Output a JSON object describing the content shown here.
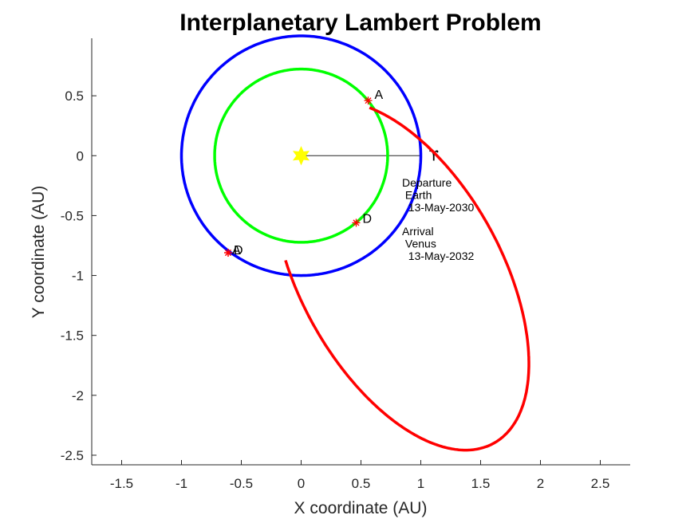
{
  "chart_data": {
    "type": "line",
    "title": "Interplanetary Lambert Problem",
    "xlabel": "X coordinate (AU)",
    "ylabel": "Y coordinate (AU)",
    "xlim": [
      -1.75,
      2.75
    ],
    "ylim": [
      -2.58,
      0.98
    ],
    "xticks": [
      -1.5,
      -1,
      -0.5,
      0,
      0.5,
      1,
      1.5,
      2,
      2.5
    ],
    "xtick_labels": [
      "-1.5",
      "-1",
      "-0.5",
      "0",
      "0.5",
      "1",
      "1.5",
      "2",
      "2.5"
    ],
    "yticks": [
      0.5,
      0,
      -0.5,
      -1,
      -1.5,
      -2,
      -2.5
    ],
    "ytick_labels": [
      "0.5",
      "0",
      "-0.5",
      "-1",
      "-1.5",
      "-2",
      "-2.5"
    ],
    "grid": false,
    "legend": "none",
    "series": [
      {
        "color": "#0000ff",
        "shape": "circle",
        "center": [
          0,
          0
        ],
        "radius": 1.0
      },
      {
        "color": "#00ff00",
        "shape": "circle",
        "center": [
          0,
          0
        ],
        "radius": 0.723
      },
      {
        "color": "#ff0000",
        "shape": "ellipse_arc",
        "center": [
          0.835,
          -1.0
        ],
        "semi_axes": [
          0.84,
          1.6
        ],
        "rotation_deg": 29,
        "from": [
          0.56,
          0.46
        ],
        "to": [
          -0.61,
          -0.81
        ]
      }
    ],
    "sun": {
      "x": 0,
      "y": 0,
      "color": "#ffff00",
      "icon": "sun-icon"
    },
    "vernal_equinox": {
      "from": [
        0,
        0
      ],
      "to": [
        1.0,
        0
      ],
      "symbol": "ϒ",
      "color": "#000000"
    },
    "markers": [
      {
        "label": "A",
        "x": 0.56,
        "y": 0.46,
        "color": "#ff0000"
      },
      {
        "label": "D",
        "x": 0.46,
        "y": -0.56,
        "color": "#ff0000"
      },
      {
        "label": "D",
        "x": -0.61,
        "y": -0.81,
        "color": "#ff0000"
      },
      {
        "label": "A",
        "x": -0.61,
        "y": -0.81,
        "color": "#ff0000"
      }
    ],
    "annotations": [
      {
        "lines": [
          "Departure",
          " Earth",
          "  13-May-2030"
        ]
      },
      {
        "lines": [
          "Arrival",
          " Venus",
          "  13-May-2032"
        ]
      }
    ]
  }
}
